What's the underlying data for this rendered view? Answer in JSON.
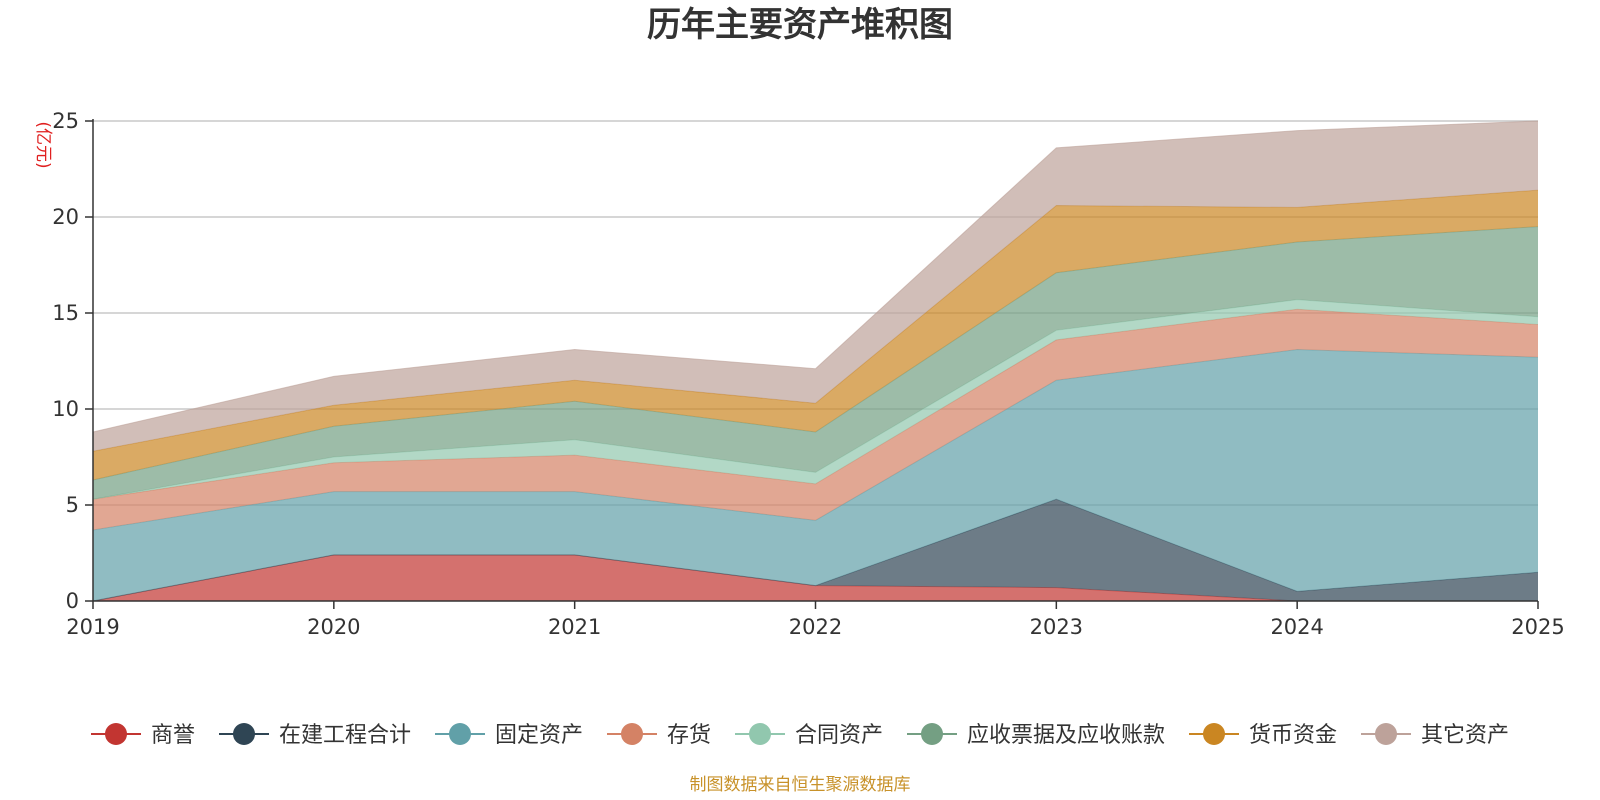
{
  "chart_data": {
    "type": "area",
    "stacked": true,
    "title": "历年主要资产堆积图",
    "ylabel": "(亿元)",
    "xlabel": "",
    "ylim": [
      0,
      25
    ],
    "yticks": [
      0,
      5,
      10,
      15,
      20,
      25
    ],
    "categories": [
      "2019",
      "2020",
      "2021",
      "2022",
      "2023",
      "2024",
      "2025"
    ],
    "grid": true,
    "legend_position": "bottom",
    "series": [
      {
        "name": "商誉",
        "color": "#c23531",
        "values": [
          0.0,
          2.4,
          2.4,
          0.8,
          0.7,
          0.0,
          0.0
        ]
      },
      {
        "name": "在建工程合计",
        "color": "#2f4554",
        "values": [
          0.0,
          0.0,
          0.0,
          0.0,
          4.6,
          0.5,
          1.5
        ]
      },
      {
        "name": "固定资产",
        "color": "#61a0a8",
        "values": [
          3.7,
          3.3,
          3.3,
          3.4,
          6.2,
          12.6,
          11.2
        ]
      },
      {
        "name": "存货",
        "color": "#d48265",
        "values": [
          1.6,
          1.5,
          1.9,
          1.9,
          2.1,
          2.1,
          1.7
        ]
      },
      {
        "name": "合同资产",
        "color": "#91c7ae",
        "values": [
          0.0,
          0.3,
          0.8,
          0.6,
          0.5,
          0.5,
          0.4
        ]
      },
      {
        "name": "应收票据及应收账款",
        "color": "#749f83",
        "values": [
          1.0,
          1.6,
          2.0,
          2.1,
          3.0,
          3.0,
          4.7
        ]
      },
      {
        "name": "货币资金",
        "color": "#ca8622",
        "values": [
          1.5,
          1.1,
          1.1,
          1.5,
          3.5,
          1.8,
          1.9
        ]
      },
      {
        "name": "其它资产",
        "color": "#bda29a",
        "values": [
          1.0,
          1.5,
          1.6,
          1.8,
          3.0,
          4.0,
          3.6
        ]
      }
    ]
  },
  "footer": {
    "source": "制图数据来自恒生聚源数据库"
  }
}
